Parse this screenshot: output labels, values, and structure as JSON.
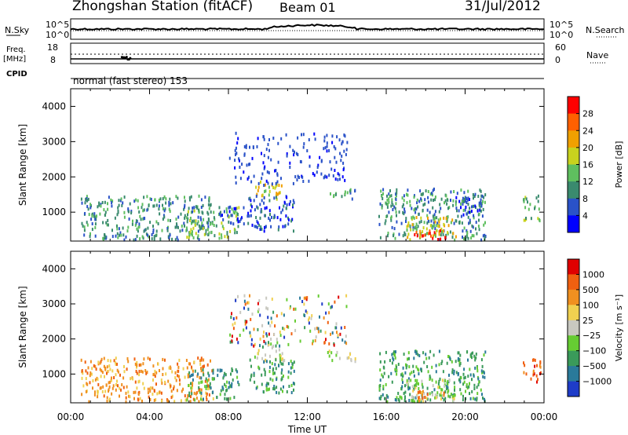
{
  "header": {
    "station": "Zhongshan Station (fitACF)",
    "beam": "Beam 01",
    "date": "31/Jul/2012"
  },
  "top_panels": {
    "nsky_label": "N.Sky",
    "nsky_ticks": [
      "10^5",
      "10^0"
    ],
    "nsearch_ticks": [
      "10^5",
      "10^0"
    ],
    "nsearch_label": "N.Search",
    "freq_label": "Freq.",
    "freq_unit": "[MHz]",
    "freq_ticks": [
      "18",
      "8"
    ],
    "nave_ticks": [
      "60",
      "0"
    ],
    "nave_label": "Nave",
    "cpid_label": "CPID",
    "cpid_text": "normal (fast stereo) 153"
  },
  "chart_data": [
    {
      "type": "heatmap",
      "name": "power",
      "ylabel": "Slant Range [km]",
      "xlabel": "Time UT",
      "ylim": [
        180,
        4500
      ],
      "yticks": [
        1000,
        2000,
        3000,
        4000
      ],
      "xlim": [
        0,
        24
      ],
      "xticks": [
        "00:00",
        "04:00",
        "08:00",
        "12:00",
        "16:00",
        "20:00",
        "00:00"
      ],
      "colorbar": {
        "label": "Power [dB]",
        "ticks": [
          "4",
          "8",
          "12",
          "16",
          "20",
          "24",
          "28"
        ],
        "colors": [
          "#0000ff",
          "#2a52c8",
          "#3a8a6e",
          "#5fbf5f",
          "#c8d21e",
          "#f0a000",
          "#ff6000",
          "#ff0000"
        ]
      },
      "regions": [
        {
          "t0": 0.5,
          "t1": 7.2,
          "r0": 250,
          "r1": 1500,
          "level": 2
        },
        {
          "t0": 5.8,
          "t1": 8.5,
          "r0": 300,
          "r1": 1200,
          "level": 3
        },
        {
          "t0": 9.3,
          "t1": 10.8,
          "r0": 1400,
          "r1": 1900,
          "level": 4
        },
        {
          "t0": 9.0,
          "t1": 11.3,
          "r0": 500,
          "r1": 1500,
          "level": 1
        },
        {
          "t0": 7.5,
          "t1": 9.2,
          "r0": 700,
          "r1": 1200,
          "level": 1
        },
        {
          "t0": 13.0,
          "t1": 14.5,
          "r0": 1400,
          "r1": 1700,
          "level": 2
        },
        {
          "t0": 15.6,
          "t1": 21.0,
          "r0": 250,
          "r1": 1700,
          "level": 2
        },
        {
          "t0": 17.0,
          "t1": 19.5,
          "r0": 250,
          "r1": 900,
          "level": 4
        },
        {
          "t0": 17.4,
          "t1": 19.0,
          "r0": 250,
          "r1": 550,
          "level": 7
        },
        {
          "t0": 19.5,
          "t1": 20.8,
          "r0": 800,
          "r1": 1600,
          "level": 1
        },
        {
          "t0": 22.9,
          "t1": 23.8,
          "r0": 800,
          "r1": 1500,
          "level": 3
        }
      ]
    },
    {
      "type": "heatmap",
      "name": "velocity",
      "ylabel": "Slant Range [km]",
      "xlabel": "Time UT",
      "ylim": [
        180,
        4500
      ],
      "yticks": [
        1000,
        2000,
        3000,
        4000
      ],
      "xlim": [
        0,
        24
      ],
      "xticks": [
        "00:00",
        "04:00",
        "08:00",
        "12:00",
        "16:00",
        "20:00",
        "00:00"
      ],
      "colorbar": {
        "label": "Velocity [m s⁻¹]",
        "ticks": [
          "1000",
          "500",
          "100",
          "25",
          "−25",
          "−100",
          "−500",
          "−1000"
        ],
        "colors": [
          "#1e3cc8",
          "#2a7a9a",
          "#3a9a5a",
          "#66cc33",
          "#c8c8c0",
          "#f0d050",
          "#f09020",
          "#f06010",
          "#e00000"
        ]
      },
      "regions": [
        {
          "t0": 0.5,
          "t1": 7.2,
          "r0": 250,
          "r1": 1500,
          "level": 6
        },
        {
          "t0": 5.8,
          "t1": 8.5,
          "r0": 300,
          "r1": 1200,
          "level": 2
        },
        {
          "t0": 9.3,
          "t1": 10.8,
          "r0": 1400,
          "r1": 1900,
          "level": 4
        },
        {
          "t0": 9.0,
          "t1": 11.3,
          "r0": 500,
          "r1": 1500,
          "level": 2
        },
        {
          "t0": 13.0,
          "t1": 14.5,
          "r0": 1400,
          "r1": 1700,
          "level": 4
        },
        {
          "t0": 15.6,
          "t1": 21.0,
          "r0": 250,
          "r1": 1700,
          "level": 2
        },
        {
          "t0": 17.0,
          "t1": 19.5,
          "r0": 250,
          "r1": 900,
          "level": 4
        },
        {
          "t0": 17.4,
          "t1": 19.0,
          "r0": 250,
          "r1": 550,
          "level": 6
        },
        {
          "t0": 22.9,
          "t1": 23.8,
          "r0": 800,
          "r1": 1500,
          "level": 7
        }
      ]
    }
  ]
}
